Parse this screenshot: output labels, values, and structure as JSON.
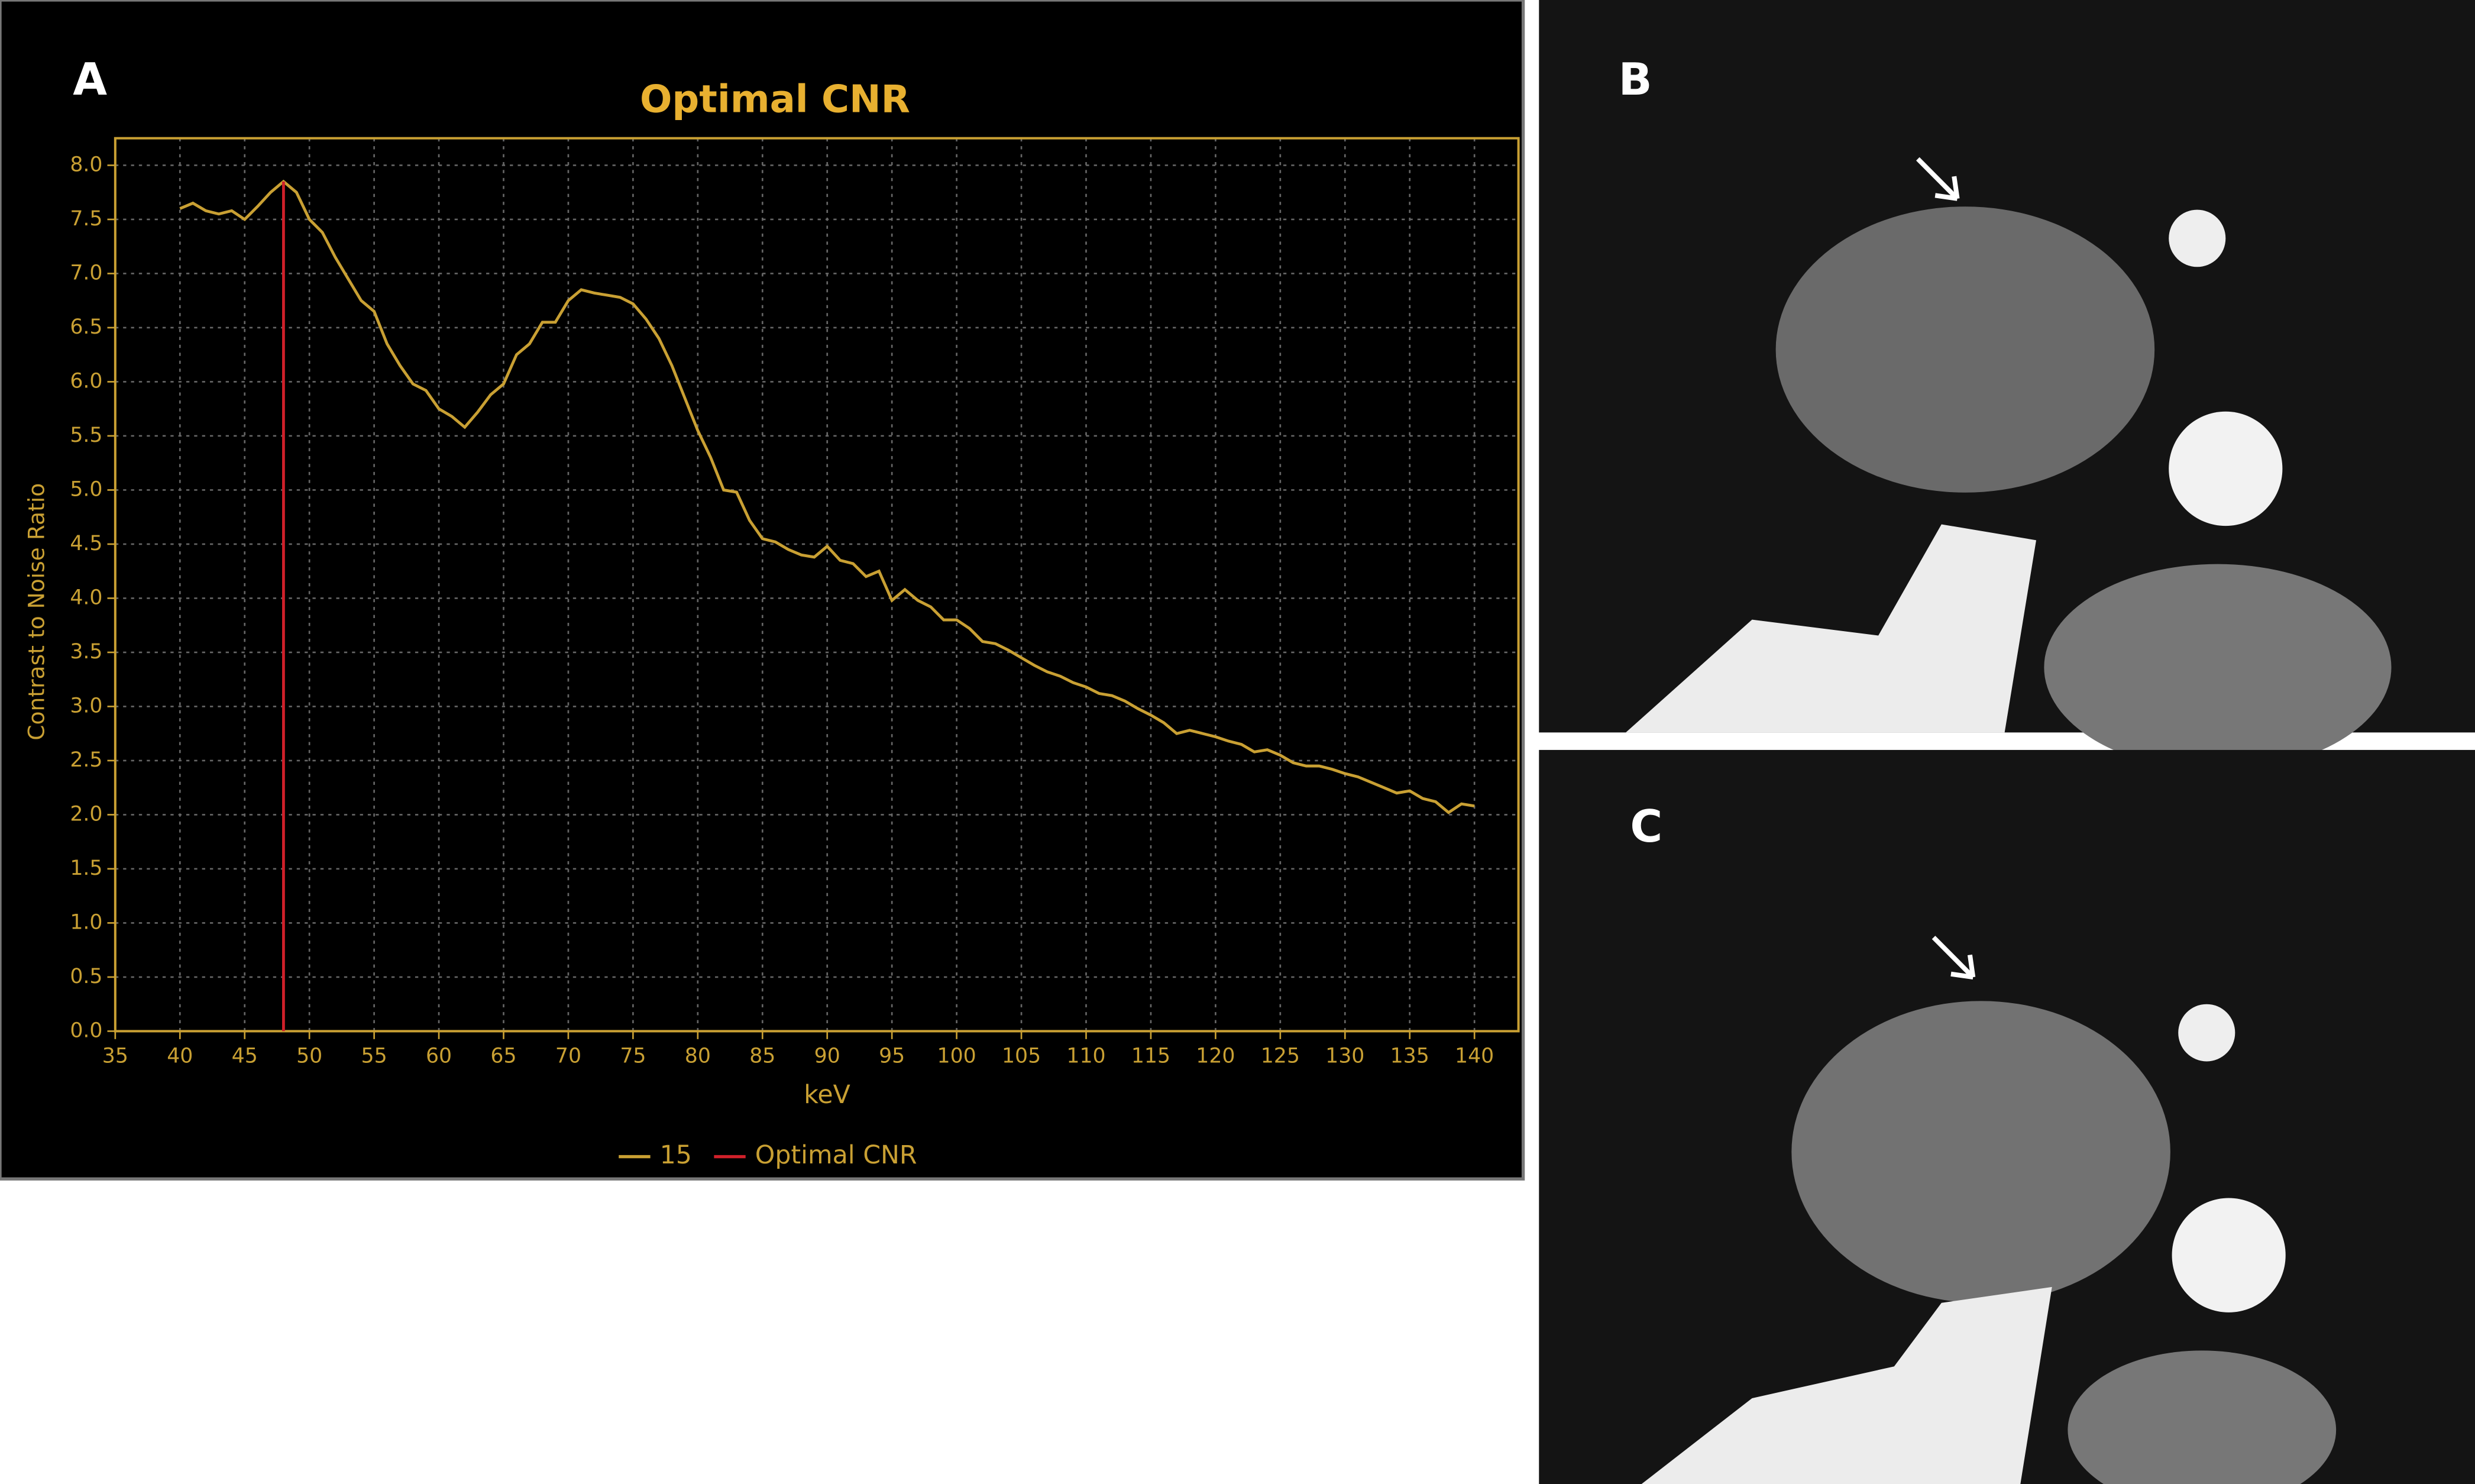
{
  "chart_data": {
    "type": "line",
    "panel_label": "A",
    "title": "Optimal CNR",
    "xlabel": "keV",
    "ylabel": "Contrast to Noise Ratio",
    "xlim": [
      35,
      143.4
    ],
    "ylim": [
      0,
      8.25
    ],
    "xticks": [
      35,
      40,
      45,
      50,
      55,
      60,
      65,
      70,
      75,
      80,
      85,
      90,
      95,
      100,
      105,
      110,
      115,
      120,
      125,
      130,
      135,
      140
    ],
    "yticks": [
      {
        "value": 0,
        "label": "0.0"
      },
      0.5,
      {
        "value": 1,
        "label": "1.0"
      },
      1.5,
      {
        "value": 2,
        "label": "2.0"
      },
      2.5,
      {
        "value": 3,
        "label": "3.0"
      },
      3.5,
      {
        "value": 4,
        "label": "4.0"
      },
      4.5,
      {
        "value": 5,
        "label": "5.0"
      },
      5.5,
      {
        "value": 6,
        "label": "6.0"
      },
      6.5,
      {
        "value": 7,
        "label": "7.0"
      },
      7.5,
      {
        "value": 8,
        "label": "8.0"
      }
    ],
    "grid": true,
    "legend": "bottom",
    "series": [
      {
        "name": "15",
        "color": "#c9a033",
        "x": [
          40,
          41,
          42,
          43,
          44,
          45,
          46,
          47,
          48,
          49,
          50,
          51,
          52,
          53,
          54,
          55,
          56,
          57,
          58,
          59,
          60,
          61,
          62,
          63,
          64,
          65,
          66,
          67,
          68,
          69,
          70,
          71,
          72,
          73,
          74,
          75,
          76,
          77,
          78,
          79,
          80,
          81,
          82,
          83,
          84,
          85,
          86,
          87,
          88,
          89,
          90,
          91,
          92,
          93,
          94,
          95,
          96,
          97,
          98,
          99,
          100,
          101,
          102,
          103,
          104,
          105,
          106,
          107,
          108,
          109,
          110,
          111,
          112,
          113,
          114,
          115,
          116,
          117,
          118,
          119,
          120,
          121,
          122,
          123,
          124,
          125,
          126,
          127,
          128,
          129,
          130,
          131,
          132,
          133,
          134,
          135,
          136,
          137,
          138,
          139,
          140
        ],
        "values": [
          7.6,
          7.65,
          7.58,
          7.55,
          7.58,
          7.5,
          7.62,
          7.75,
          7.85,
          7.75,
          7.5,
          7.38,
          7.15,
          6.95,
          6.75,
          6.65,
          6.35,
          6.15,
          5.98,
          5.92,
          5.75,
          5.68,
          5.58,
          5.72,
          5.88,
          5.98,
          6.25,
          6.35,
          6.55,
          6.55,
          6.75,
          6.85,
          6.82,
          6.8,
          6.78,
          6.72,
          6.58,
          6.4,
          6.15,
          5.85,
          5.55,
          5.3,
          5.0,
          4.98,
          4.72,
          4.55,
          4.52,
          4.45,
          4.4,
          4.38,
          4.48,
          4.35,
          4.32,
          4.2,
          4.25,
          3.98,
          4.08,
          3.98,
          3.92,
          3.8,
          3.8,
          3.72,
          3.6,
          3.58,
          3.52,
          3.45,
          3.38,
          3.32,
          3.28,
          3.22,
          3.18,
          3.12,
          3.1,
          3.05,
          2.98,
          2.92,
          2.85,
          2.75,
          2.78,
          2.75,
          2.72,
          2.68,
          2.65,
          2.58,
          2.6,
          2.55,
          2.48,
          2.45,
          2.45,
          2.42,
          2.38,
          2.35,
          2.3,
          2.25,
          2.2,
          2.22,
          2.15,
          2.12,
          2.02,
          2.1,
          2.08
        ]
      },
      {
        "name": "Optimal CNR",
        "color": "#d0202a",
        "x": [
          48,
          48
        ],
        "values": [
          0,
          7.85
        ]
      }
    ]
  },
  "panels": [
    {
      "label": "B"
    },
    {
      "label": "C"
    }
  ]
}
